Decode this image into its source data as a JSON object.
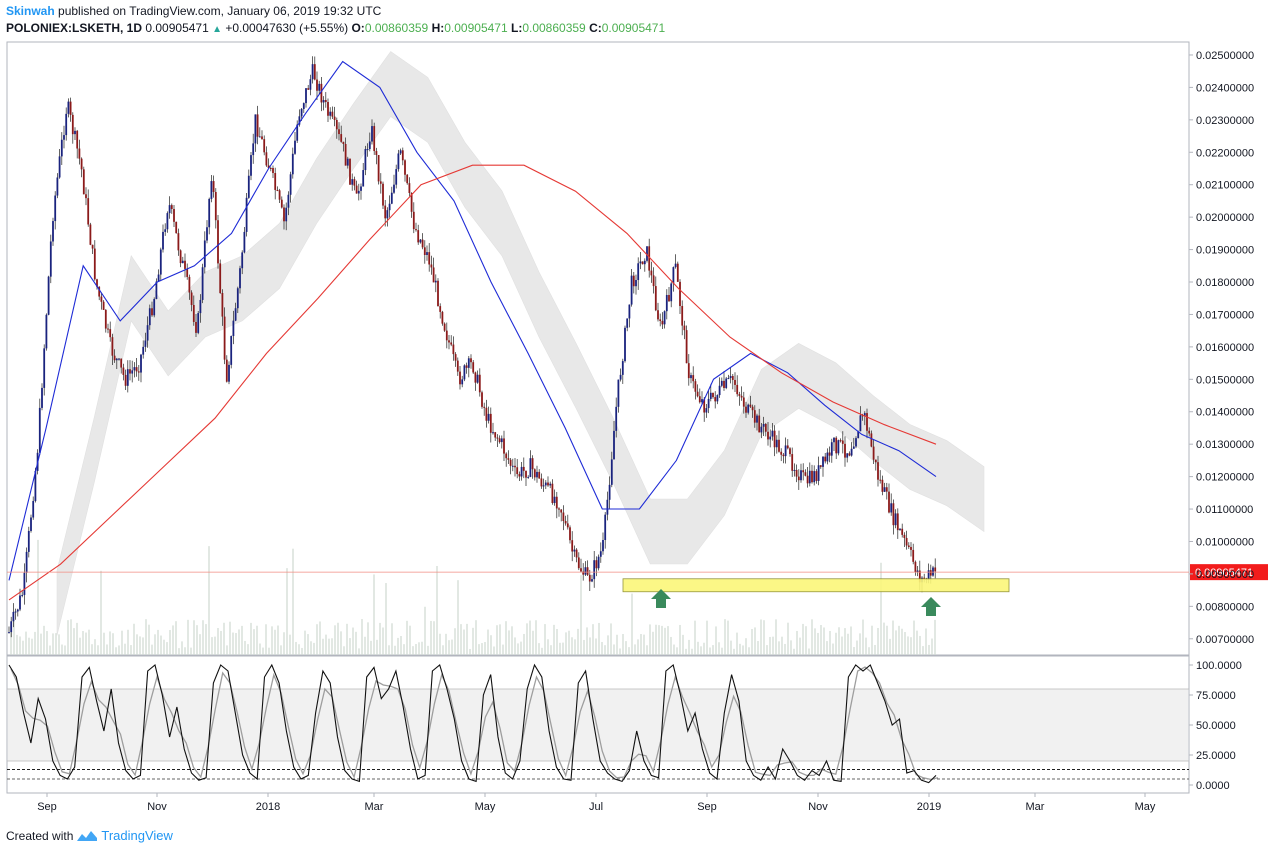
{
  "header": {
    "author": "Skinwah",
    "published": "published on TradingView.com, January 06, 2019 19:32 UTC",
    "symbol": "POLONIEX:LSKETH, 1D",
    "last": "0.00905471",
    "change": "+0.00047630 (+5.55%)",
    "o_label": "O:",
    "o": "0.00860359",
    "h_label": "H:",
    "h": "0.00905471",
    "l_label": "L:",
    "l": "0.00860359",
    "c_label": "C:",
    "c": "0.00905471"
  },
  "footer": {
    "created_with": "Created with",
    "brand": "TradingView"
  },
  "colors": {
    "up": "#1a237e",
    "down": "#8b1a1a",
    "ema_fast": "#1e2bd6",
    "ema_slow": "#e53935",
    "cloud": "#d6d6d6",
    "highlight": "#fbf77a",
    "arrow": "#3a8a5c",
    "price_tag": "#f21c1c"
  },
  "chart_data": [
    {
      "type": "candlestick",
      "symbol": "POLONIEX:LSKETH",
      "interval": "1D",
      "x_ticks": [
        "Sep",
        "Nov",
        "2018",
        "Mar",
        "May",
        "Jul",
        "Sep",
        "Nov",
        "2019",
        "Mar",
        "May"
      ],
      "y_ticks": [
        "0.02500000",
        "0.02400000",
        "0.02300000",
        "0.02200000",
        "0.02100000",
        "0.02000000",
        "0.01900000",
        "0.01800000",
        "0.01700000",
        "0.01600000",
        "0.01500000",
        "0.01400000",
        "0.01300000",
        "0.01200000",
        "0.01100000",
        "0.01000000",
        "0.00900000",
        "0.00800000",
        "0.00700000"
      ],
      "ylim": [
        0.0065,
        0.0254
      ],
      "last_price_label": "0.00905471",
      "last_price": 0.00905471,
      "support_zone": [
        0.00845,
        0.00885
      ],
      "close_path": [
        [
          "Aug",
          0.0072
        ],
        [
          "Aug",
          0.0085
        ],
        [
          "Aug",
          0.013
        ],
        [
          "Sep",
          0.02
        ],
        [
          "Sep",
          0.0235
        ],
        [
          "Sep",
          0.0215
        ],
        [
          "Oct",
          0.018
        ],
        [
          "Oct",
          0.016
        ],
        [
          "Oct",
          0.015
        ],
        [
          "Nov",
          0.0155
        ],
        [
          "Nov",
          0.0175
        ],
        [
          "Nov",
          0.0205
        ],
        [
          "Dec",
          0.0185
        ],
        [
          "Dec",
          0.0165
        ],
        [
          "Dec",
          0.0215
        ],
        [
          "Dec",
          0.015
        ],
        [
          "2018",
          0.0185
        ],
        [
          "Jan",
          0.023
        ],
        [
          "Jan",
          0.0215
        ],
        [
          "Jan",
          0.0198
        ],
        [
          "Feb",
          0.0232
        ],
        [
          "Feb",
          0.0245
        ],
        [
          "Feb",
          0.0232
        ],
        [
          "Mar",
          0.0222
        ],
        [
          "Mar",
          0.0205
        ],
        [
          "Mar",
          0.0228
        ],
        [
          "Apr",
          0.02
        ],
        [
          "Apr",
          0.022
        ],
        [
          "Apr",
          0.0197
        ],
        [
          "May",
          0.0187
        ],
        [
          "May",
          0.0168
        ],
        [
          "May",
          0.015
        ],
        [
          "May",
          0.0155
        ],
        [
          "Jun",
          0.0138
        ],
        [
          "Jun",
          0.013
        ],
        [
          "Jun",
          0.012
        ],
        [
          "Jul",
          0.0123
        ],
        [
          "Jul",
          0.0117
        ],
        [
          "Jul",
          0.0112
        ],
        [
          "Aug",
          0.0095
        ],
        [
          "Aug",
          0.0088
        ],
        [
          "Aug",
          0.0098
        ],
        [
          "Aug",
          0.0145
        ],
        [
          "Aug",
          0.018
        ],
        [
          "Aug",
          0.019
        ],
        [
          "Sep",
          0.0165
        ],
        [
          "Sep",
          0.0185
        ],
        [
          "Sep",
          0.015
        ],
        [
          "Sep",
          0.0142
        ],
        [
          "Oct",
          0.0146
        ],
        [
          "Oct",
          0.015
        ],
        [
          "Oct",
          0.014
        ],
        [
          "Oct",
          0.0135
        ],
        [
          "Nov",
          0.013
        ],
        [
          "Nov",
          0.0125
        ],
        [
          "Nov",
          0.0118
        ],
        [
          "Nov",
          0.0122
        ],
        [
          "Dec",
          0.013
        ],
        [
          "Dec",
          0.0128
        ],
        [
          "Dec",
          0.014
        ],
        [
          "Dec",
          0.012
        ],
        [
          "Dec",
          0.0108
        ],
        [
          "Dec",
          0.0098
        ],
        [
          "2019",
          0.0088
        ],
        [
          "Jan",
          0.00905
        ]
      ],
      "ema_fast_path": [
        [
          "Aug",
          0.0088
        ],
        [
          "Sep",
          0.0135
        ],
        [
          "Oct",
          0.0185
        ],
        [
          "Nov",
          0.0168
        ],
        [
          "Nov",
          0.018
        ],
        [
          "Dec",
          0.0185
        ],
        [
          "2018",
          0.0195
        ],
        [
          "Jan",
          0.0215
        ],
        [
          "Feb",
          0.0232
        ],
        [
          "Mar",
          0.0248
        ],
        [
          "Apr",
          0.024
        ],
        [
          "Apr",
          0.022
        ],
        [
          "May",
          0.0205
        ],
        [
          "May",
          0.018
        ],
        [
          "Jun",
          0.0158
        ],
        [
          "Jul",
          0.0135
        ],
        [
          "Aug",
          0.011
        ],
        [
          "Aug",
          0.011
        ],
        [
          "Sep",
          0.0125
        ],
        [
          "Sep",
          0.015
        ],
        [
          "Oct",
          0.0158
        ],
        [
          "Oct",
          0.0152
        ],
        [
          "Nov",
          0.0142
        ],
        [
          "Dec",
          0.0133
        ],
        [
          "Dec",
          0.0128
        ],
        [
          "2019",
          0.012
        ]
      ],
      "ema_slow_path": [
        [
          "Aug",
          0.0082
        ],
        [
          "Sep",
          0.0093
        ],
        [
          "Oct",
          0.0108
        ],
        [
          "Nov",
          0.0123
        ],
        [
          "Dec",
          0.0138
        ],
        [
          "2018",
          0.0158
        ],
        [
          "Jan",
          0.0175
        ],
        [
          "Feb",
          0.0193
        ],
        [
          "Mar",
          0.021
        ],
        [
          "Apr",
          0.0216
        ],
        [
          "May",
          0.0216
        ],
        [
          "Jun",
          0.0208
        ],
        [
          "Jul",
          0.0195
        ],
        [
          "Aug",
          0.0178
        ],
        [
          "Sep",
          0.0163
        ],
        [
          "Oct",
          0.0152
        ],
        [
          "Nov",
          0.0143
        ],
        [
          "Dec",
          0.0136
        ],
        [
          "2019",
          0.013
        ]
      ]
    },
    {
      "type": "line",
      "name": "stochastic",
      "y_ticks": [
        "100.0000",
        "75.0000",
        "50.0000",
        "25.0000",
        "0.0000"
      ],
      "ylim": [
        0,
        100
      ],
      "band": [
        20,
        80
      ],
      "reference_lines": [
        13,
        5
      ],
      "values": [
        100,
        90,
        60,
        35,
        72,
        55,
        20,
        8,
        5,
        15,
        90,
        98,
        70,
        45,
        80,
        35,
        12,
        5,
        8,
        95,
        100,
        75,
        40,
        65,
        30,
        10,
        4,
        6,
        85,
        100,
        95,
        60,
        25,
        10,
        5,
        90,
        100,
        85,
        45,
        15,
        5,
        8,
        60,
        95,
        85,
        40,
        12,
        5,
        3,
        90,
        98,
        72,
        80,
        95,
        65,
        30,
        5,
        8,
        95,
        100,
        80,
        55,
        20,
        5,
        3,
        75,
        92,
        40,
        10,
        5,
        20,
        80,
        100,
        90,
        45,
        15,
        5,
        4,
        85,
        95,
        55,
        20,
        10,
        5,
        3,
        12,
        45,
        20,
        8,
        6,
        95,
        100,
        75,
        45,
        60,
        30,
        10,
        5,
        60,
        92,
        70,
        20,
        8,
        4,
        15,
        5,
        30,
        20,
        8,
        4,
        12,
        8,
        20,
        4,
        3,
        90,
        100,
        95,
        100,
        85,
        70,
        50,
        55,
        10,
        12,
        4,
        2,
        8
      ]
    }
  ]
}
